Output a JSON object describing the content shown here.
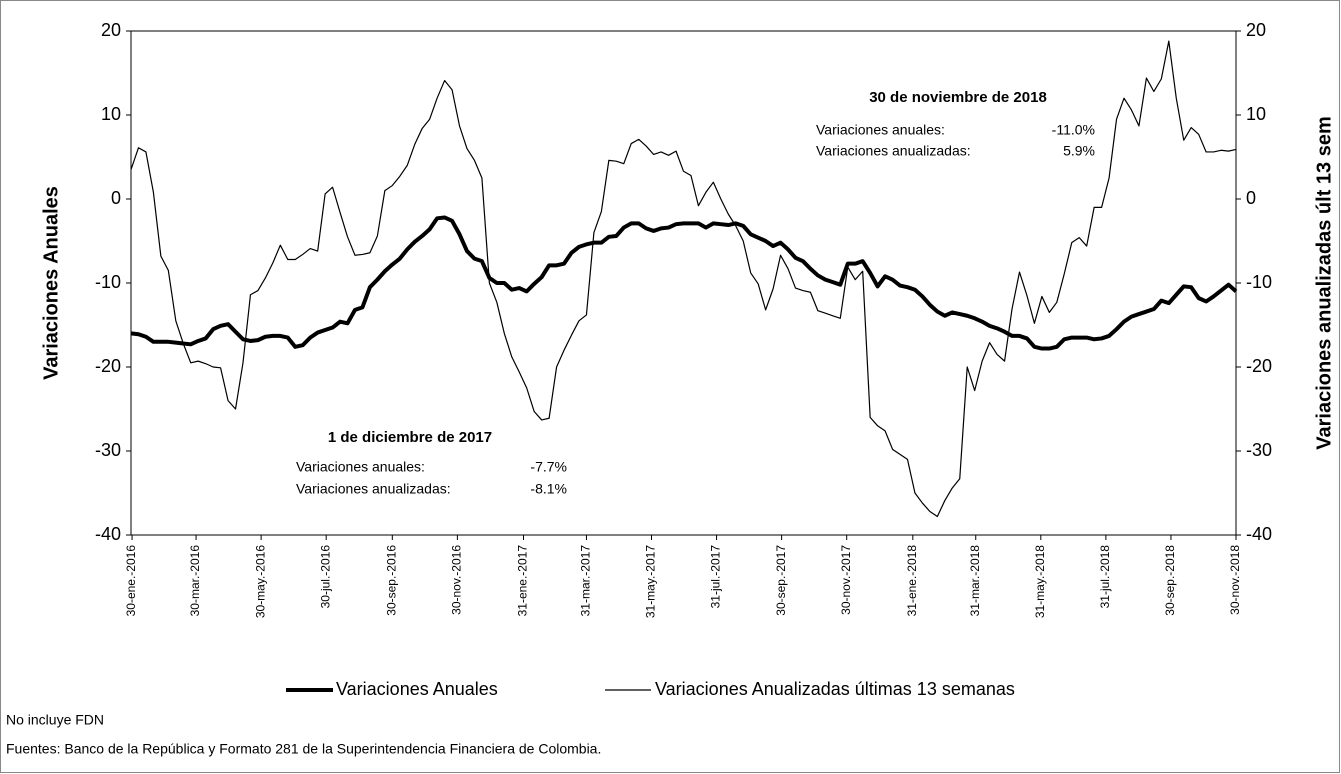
{
  "chart_data": {
    "type": "line",
    "ylabel": "Variaciones Anuales",
    "y2label": "Variaciones anualizadas últ 13 sem",
    "x": [
      "2016-01-29",
      "2016-02-05",
      "2016-02-12",
      "2016-02-19",
      "2016-02-26",
      "2016-03-04",
      "2016-03-11",
      "2016-03-18",
      "2016-03-25",
      "2016-04-01",
      "2016-04-08",
      "2016-04-15",
      "2016-04-22",
      "2016-04-29",
      "2016-05-06",
      "2016-05-13",
      "2016-05-20",
      "2016-05-27",
      "2016-06-03",
      "2016-06-10",
      "2016-06-17",
      "2016-06-24",
      "2016-07-01",
      "2016-07-08",
      "2016-07-15",
      "2016-07-22",
      "2016-07-29",
      "2016-08-05",
      "2016-08-12",
      "2016-08-19",
      "2016-08-26",
      "2016-09-02",
      "2016-09-09",
      "2016-09-16",
      "2016-09-23",
      "2016-09-30",
      "2016-10-07",
      "2016-10-14",
      "2016-10-21",
      "2016-10-28",
      "2016-11-04",
      "2016-11-11",
      "2016-11-18",
      "2016-11-25",
      "2016-12-02",
      "2016-12-09",
      "2016-12-16",
      "2016-12-23",
      "2016-12-30",
      "2017-01-06",
      "2017-01-13",
      "2017-01-20",
      "2017-01-27",
      "2017-02-03",
      "2017-02-10",
      "2017-02-17",
      "2017-02-24",
      "2017-03-03",
      "2017-03-10",
      "2017-03-17",
      "2017-03-24",
      "2017-03-31",
      "2017-04-07",
      "2017-04-14",
      "2017-04-21",
      "2017-04-28",
      "2017-05-05",
      "2017-05-12",
      "2017-05-19",
      "2017-05-26",
      "2017-06-02",
      "2017-06-09",
      "2017-06-16",
      "2017-06-23",
      "2017-06-30",
      "2017-07-07",
      "2017-07-14",
      "2017-07-21",
      "2017-07-28",
      "2017-08-04",
      "2017-08-11",
      "2017-08-18",
      "2017-08-25",
      "2017-09-01",
      "2017-09-08",
      "2017-09-15",
      "2017-09-22",
      "2017-09-29",
      "2017-10-06",
      "2017-10-13",
      "2017-10-20",
      "2017-10-27",
      "2017-11-03",
      "2017-11-10",
      "2017-11-17",
      "2017-11-24",
      "2017-12-01",
      "2017-12-08",
      "2017-12-15",
      "2017-12-22",
      "2017-12-29",
      "2018-01-05",
      "2018-01-12",
      "2018-01-19",
      "2018-01-26",
      "2018-02-02",
      "2018-02-09",
      "2018-02-16",
      "2018-02-23",
      "2018-03-02",
      "2018-03-09",
      "2018-03-16",
      "2018-03-23",
      "2018-03-30",
      "2018-04-06",
      "2018-04-13",
      "2018-04-20",
      "2018-04-27",
      "2018-05-04",
      "2018-05-11",
      "2018-05-18",
      "2018-05-25",
      "2018-06-01",
      "2018-06-08",
      "2018-06-15",
      "2018-06-22",
      "2018-06-29",
      "2018-07-06",
      "2018-07-13",
      "2018-07-20",
      "2018-07-27",
      "2018-08-03",
      "2018-08-10",
      "2018-08-17",
      "2018-08-24",
      "2018-08-31",
      "2018-09-07",
      "2018-09-14",
      "2018-09-21",
      "2018-09-28",
      "2018-10-05",
      "2018-10-12",
      "2018-10-19",
      "2018-10-26",
      "2018-11-02",
      "2018-11-09",
      "2018-11-16",
      "2018-11-23",
      "2018-11-30"
    ],
    "xlim": [
      "2016-01-29",
      "2018-11-30"
    ],
    "xticks": [
      {
        "value": "2016-01-30",
        "label": "30-ene.-2016"
      },
      {
        "value": "2016-03-30",
        "label": "30-mar.-2016"
      },
      {
        "value": "2016-05-30",
        "label": "30-may.-2016"
      },
      {
        "value": "2016-07-30",
        "label": "30-jul.-2016"
      },
      {
        "value": "2016-09-30",
        "label": "30-sep.-2016"
      },
      {
        "value": "2016-11-30",
        "label": "30-nov.-2016"
      },
      {
        "value": "2017-01-31",
        "label": "31-ene.-2017"
      },
      {
        "value": "2017-03-31",
        "label": "31-mar.-2017"
      },
      {
        "value": "2017-05-31",
        "label": "31-may.-2017"
      },
      {
        "value": "2017-07-31",
        "label": "31-jul.-2017"
      },
      {
        "value": "2017-09-30",
        "label": "30-sep.-2017"
      },
      {
        "value": "2017-11-30",
        "label": "30-nov.-2017"
      },
      {
        "value": "2018-01-31",
        "label": "31-ene.-2018"
      },
      {
        "value": "2018-03-31",
        "label": "31-mar.-2018"
      },
      {
        "value": "2018-05-31",
        "label": "31-may.-2018"
      },
      {
        "value": "2018-07-31",
        "label": "31-jul.-2018"
      },
      {
        "value": "2018-09-30",
        "label": "30-sep.-2018"
      },
      {
        "value": "2018-11-30",
        "label": "30-nov.-2018"
      }
    ],
    "ylim": [
      -40,
      20
    ],
    "yticks": [
      -40,
      -30,
      -20,
      -10,
      0,
      10,
      20
    ],
    "y2lim": [
      -40,
      20
    ],
    "y2ticks": [
      -40,
      -30,
      -20,
      -10,
      0,
      10,
      20
    ],
    "grid": false,
    "series": [
      {
        "name": "Variaciones Anuales",
        "color": "#000000",
        "width": 4,
        "values": [
          -16,
          -16.1,
          -16.4,
          -17,
          -17,
          -17,
          -17.1,
          -17.2,
          -17.3,
          -16.9,
          -16.6,
          -15.5,
          -15.1,
          -14.9,
          -15.8,
          -16.7,
          -16.9,
          -16.8,
          -16.4,
          -16.3,
          -16.3,
          -16.5,
          -17.6,
          -17.4,
          -16.5,
          -15.9,
          -15.6,
          -15.3,
          -14.6,
          -14.8,
          -13.2,
          -12.9,
          -10.5,
          -9.6,
          -8.6,
          -7.8,
          -7.1,
          -6,
          -5.1,
          -4.4,
          -3.6,
          -2.3,
          -2.2,
          -2.6,
          -4.2,
          -6.2,
          -7.1,
          -7.4,
          -9.4,
          -10,
          -10,
          -10.8,
          -10.6,
          -11,
          -10.1,
          -9.3,
          -7.9,
          -7.9,
          -7.7,
          -6.4,
          -5.7,
          -5.4,
          -5.2,
          -5.2,
          -4.5,
          -4.4,
          -3.4,
          -2.9,
          -2.9,
          -3.5,
          -3.8,
          -3.5,
          -3.4,
          -3,
          -2.9,
          -2.9,
          -2.9,
          -3.4,
          -2.9,
          -3,
          -3.1,
          -2.9,
          -3.2,
          -4.2,
          -4.6,
          -5,
          -5.6,
          -5.2,
          -6,
          -7,
          -7.4,
          -8.3,
          -9.1,
          -9.6,
          -9.9,
          -10.2,
          -7.7,
          -7.7,
          -7.4,
          -8.8,
          -10.4,
          -9.2,
          -9.6,
          -10.3,
          -10.5,
          -10.8,
          -11.6,
          -12.6,
          -13.4,
          -13.9,
          -13.5,
          -13.7,
          -13.9,
          -14.2,
          -14.6,
          -15.1,
          -15.4,
          -15.8,
          -16.3,
          -16.3,
          -16.6,
          -17.6,
          -17.8,
          -17.8,
          -17.6,
          -16.7,
          -16.5,
          -16.5,
          -16.5,
          -16.7,
          -16.6,
          -16.3,
          -15.5,
          -14.6,
          -14,
          -13.7,
          -13.4,
          -13.1,
          -12.1,
          -12.4,
          -11.4,
          -10.4,
          -10.5,
          -11.8,
          -12.2,
          -11.6,
          -10.9,
          -10.2,
          -11
        ]
      },
      {
        "name": "Variaciones Anualizadas últimas 13 semanas",
        "color": "#000000",
        "width": 1.2,
        "axis": "y2",
        "values": [
          3.5,
          6.1,
          5.6,
          0.8,
          -6.8,
          -8.5,
          -14.5,
          -17.2,
          -19.5,
          -19.3,
          -19.6,
          -20,
          -20.1,
          -24,
          -25,
          -19.5,
          -11.4,
          -10.9,
          -9.4,
          -7.6,
          -5.5,
          -7.2,
          -7.2,
          -6.6,
          -5.9,
          -6.2,
          0.6,
          1.4,
          -1.6,
          -4.5,
          -6.7,
          -6.6,
          -6.4,
          -4.4,
          1,
          1.6,
          2.7,
          4,
          6.5,
          8.4,
          9.5,
          12,
          14.1,
          13,
          8.7,
          6,
          4.6,
          2.5,
          -10,
          -12.3,
          -16,
          -18.8,
          -20.6,
          -22.5,
          -25.3,
          -26.3,
          -26.1,
          -20,
          -18,
          -16.2,
          -14.5,
          -13.8,
          -4,
          -1.5,
          4.6,
          4.5,
          4.2,
          6.6,
          7.1,
          6.3,
          5.3,
          5.6,
          5.2,
          5.7,
          3.3,
          2.8,
          -0.8,
          0.8,
          2,
          0,
          -1.8,
          -3.2,
          -5,
          -8.8,
          -10.1,
          -13.2,
          -10.7,
          -6.7,
          -8.3,
          -10.6,
          -10.9,
          -11.1,
          -13.3,
          -13.6,
          -13.9,
          -14.2,
          -8.1,
          -9.6,
          -8.6,
          -26,
          -27,
          -27.6,
          -29.8,
          -30.4,
          -31,
          -35,
          -36.2,
          -37.2,
          -37.8,
          -35.9,
          -34.4,
          -33.3,
          -20,
          -22.8,
          -19.3,
          -17.1,
          -18.5,
          -19.3,
          -13.1,
          -8.7,
          -11.5,
          -14.8,
          -11.6,
          -13.5,
          -12.3,
          -8.9,
          -5.2,
          -4.6,
          -5.6,
          -1,
          -1,
          2.5,
          9.5,
          12,
          10.6,
          8.7,
          14.4,
          12.8,
          14.3,
          18.8,
          12,
          7,
          8.5,
          7.7,
          5.6,
          5.6,
          5.8,
          5.7,
          5.9
        ]
      }
    ],
    "legend": "bottom",
    "annotations": [
      {
        "title": "30 de noviembre de 2018",
        "rows": [
          {
            "text": "Variaciones anuales:",
            "value": -11.0,
            "label": "-11.0%"
          },
          {
            "text": "Variaciones anualizadas:",
            "value": 5.9,
            "label": "5.9%"
          }
        ]
      },
      {
        "title": "1 de diciembre de 2017",
        "rows": [
          {
            "text": "Variaciones anuales:",
            "value": -7.7,
            "label": "-7.7%"
          },
          {
            "text": "Variaciones anualizadas:",
            "value": -8.1,
            "label": "-8.1%"
          }
        ]
      }
    ],
    "notes": [
      "No incluye FDN",
      "Fuentes: Banco de la República y Formato 281 de la Superintendencia Financiera de Colombia."
    ]
  }
}
